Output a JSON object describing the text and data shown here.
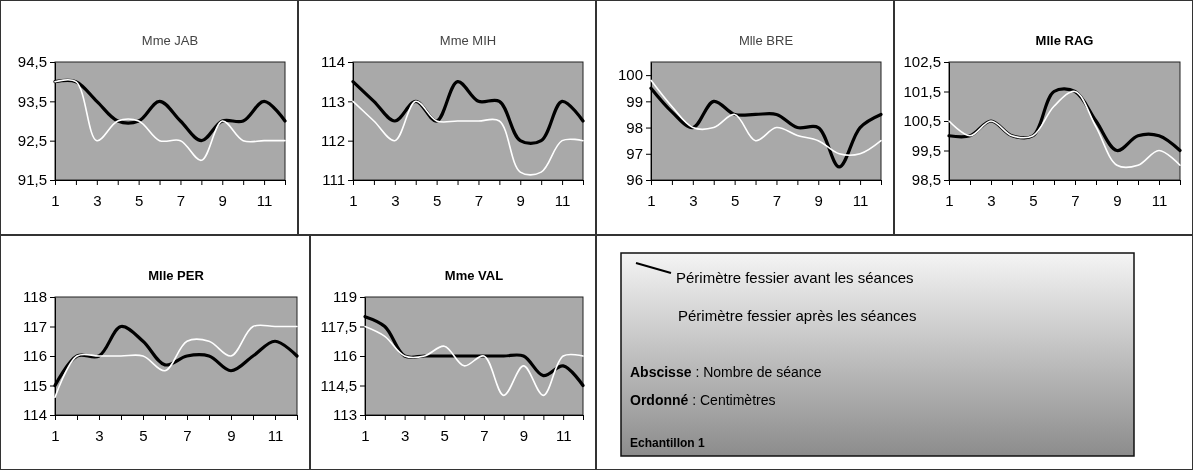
{
  "chart_data": [
    {
      "type": "line",
      "title": "Mme JAB",
      "x": [
        1,
        2,
        3,
        4,
        5,
        6,
        7,
        8,
        9,
        10,
        11,
        12
      ],
      "xlim": [
        1,
        12
      ],
      "xticks": [
        1,
        {
          "value": 2,
          "label": null
        },
        3,
        {
          "value": 4,
          "label": null
        },
        5,
        {
          "value": 6,
          "label": null
        },
        7,
        {
          "value": 8,
          "label": null
        },
        9,
        {
          "value": 10,
          "label": null
        },
        11,
        {
          "value": 12,
          "label": null
        }
      ],
      "ylim": [
        91.5,
        94.5
      ],
      "yticks": [
        {
          "value": 91.5,
          "label": "91,5"
        },
        {
          "value": 92.5,
          "label": "92,5"
        },
        {
          "value": 93.5,
          "label": "93,5"
        },
        {
          "value": 94.5,
          "label": "94,5"
        }
      ],
      "series": [
        {
          "color": "#000000",
          "values": [
            94,
            94,
            93.5,
            93,
            93,
            93.5,
            93,
            92.5,
            93,
            93,
            93.5,
            93
          ]
        },
        {
          "color": "#ffffff",
          "values": [
            94,
            94,
            92.5,
            93,
            93,
            92.5,
            92.5,
            92,
            93,
            92.5,
            92.5,
            92.5
          ]
        }
      ]
    },
    {
      "type": "line",
      "title": "Mme MIH",
      "x": [
        1,
        2,
        3,
        4,
        5,
        6,
        7,
        8,
        9,
        10,
        11,
        12
      ],
      "xlim": [
        1,
        12
      ],
      "xticks": [
        1,
        {
          "value": 2,
          "label": null
        },
        3,
        {
          "value": 4,
          "label": null
        },
        5,
        {
          "value": 6,
          "label": null
        },
        7,
        {
          "value": 8,
          "label": null
        },
        9,
        {
          "value": 10,
          "label": null
        },
        11,
        {
          "value": 12,
          "label": null
        }
      ],
      "ylim": [
        111,
        114
      ],
      "yticks": [
        111,
        112,
        113,
        114
      ],
      "series": [
        {
          "color": "#000000",
          "values": [
            113.5,
            113,
            112.5,
            113,
            112.5,
            113.5,
            113,
            113,
            112,
            112,
            113,
            112.5
          ]
        },
        {
          "color": "#ffffff",
          "values": [
            113,
            112.5,
            112,
            113,
            112.5,
            112.5,
            112.5,
            112.5,
            111.2,
            111.2,
            112,
            112
          ]
        }
      ]
    },
    {
      "type": "line",
      "title": "Mlle BRE",
      "x": [
        1,
        2,
        3,
        4,
        5,
        6,
        7,
        8,
        9,
        10,
        11,
        12
      ],
      "xlim": [
        1,
        12
      ],
      "xticks": [
        1,
        {
          "value": 2,
          "label": null
        },
        3,
        {
          "value": 4,
          "label": null
        },
        5,
        {
          "value": 6,
          "label": null
        },
        7,
        {
          "value": 8,
          "label": null
        },
        9,
        {
          "value": 10,
          "label": null
        },
        11,
        {
          "value": 12,
          "label": null
        }
      ],
      "ylim": [
        96,
        100.5
      ],
      "yticks": [
        96,
        97,
        98,
        99,
        100
      ],
      "series": [
        {
          "color": "#000000",
          "values": [
            99.5,
            98.6,
            98,
            99,
            98.5,
            98.5,
            98.5,
            98,
            98,
            96.5,
            98,
            98.5
          ]
        },
        {
          "color": "#ffffff",
          "values": [
            99.8,
            98.8,
            98,
            98,
            98.5,
            97.5,
            98,
            97.7,
            97.5,
            97,
            97,
            97.5
          ]
        }
      ]
    },
    {
      "type": "line",
      "title": "Mlle RAG",
      "x": [
        1,
        2,
        3,
        4,
        5,
        6,
        7,
        8,
        9,
        10,
        11,
        12
      ],
      "xlim": [
        1,
        12
      ],
      "xticks": [
        1,
        {
          "value": 2,
          "label": null
        },
        3,
        {
          "value": 4,
          "label": null
        },
        5,
        {
          "value": 6,
          "label": null
        },
        7,
        {
          "value": 8,
          "label": null
        },
        9,
        {
          "value": 10,
          "label": null
        },
        11,
        {
          "value": 12,
          "label": null
        }
      ],
      "ylim": [
        98.5,
        102.5
      ],
      "yticks": [
        {
          "value": 98.5,
          "label": "98,5"
        },
        {
          "value": 99.5,
          "label": "99,5"
        },
        {
          "value": 100.5,
          "label": "100,5"
        },
        {
          "value": 101.5,
          "label": "101,5"
        },
        {
          "value": 102.5,
          "label": "102,5"
        }
      ],
      "series": [
        {
          "color": "#000000",
          "values": [
            100,
            100,
            100.5,
            100,
            100,
            101.5,
            101.5,
            100.5,
            99.5,
            100,
            100,
            99.5
          ]
        },
        {
          "color": "#ffffff",
          "values": [
            100.5,
            100,
            100.5,
            100,
            100,
            101,
            101.5,
            100.3,
            99,
            99,
            99.5,
            99
          ]
        }
      ]
    },
    {
      "type": "line",
      "title": "Mlle PER",
      "x": [
        1,
        2,
        3,
        4,
        5,
        6,
        7,
        8,
        9,
        10,
        11,
        12
      ],
      "xlim": [
        1,
        12
      ],
      "xticks": [
        1,
        {
          "value": 2,
          "label": null
        },
        3,
        {
          "value": 4,
          "label": null
        },
        5,
        {
          "value": 6,
          "label": null
        },
        7,
        {
          "value": 8,
          "label": null
        },
        9,
        {
          "value": 10,
          "label": null
        },
        11,
        {
          "value": 12,
          "label": null
        }
      ],
      "ylim": [
        114,
        118
      ],
      "yticks": [
        114,
        115,
        116,
        117,
        118
      ],
      "series": [
        {
          "color": "#000000",
          "values": [
            115,
            116,
            116,
            117,
            116.5,
            115.7,
            116,
            116,
            115.5,
            116,
            116.5,
            116
          ]
        },
        {
          "color": "#ffffff",
          "values": [
            114.6,
            116,
            116,
            116,
            116,
            115.5,
            116.5,
            116.5,
            116,
            117,
            117,
            117
          ]
        }
      ]
    },
    {
      "type": "line",
      "title": "Mme VAL",
      "x": [
        1,
        2,
        3,
        4,
        5,
        6,
        7,
        8,
        9,
        10,
        11,
        12
      ],
      "xlim": [
        1,
        12
      ],
      "xticks": [
        1,
        {
          "value": 2,
          "label": null
        },
        3,
        {
          "value": 4,
          "label": null
        },
        5,
        {
          "value": 6,
          "label": null
        },
        7,
        {
          "value": 8,
          "label": null
        },
        9,
        {
          "value": 10,
          "label": null
        },
        11,
        {
          "value": 12,
          "label": null
        }
      ],
      "ylim": [
        113,
        119
      ],
      "yticks": [
        113,
        {
          "value": 114.5,
          "label": "114,5"
        },
        116,
        {
          "value": 117.5,
          "label": "117,5"
        },
        119
      ],
      "series": [
        {
          "color": "#000000",
          "values": [
            118,
            117.5,
            116,
            116,
            116,
            116,
            116,
            116,
            116,
            115,
            115.5,
            114.5
          ]
        },
        {
          "color": "#ffffff",
          "values": [
            117.5,
            117,
            116,
            116,
            116.5,
            115.5,
            116,
            114,
            115.5,
            114,
            116,
            116
          ]
        }
      ]
    },
    {
      "type": "other",
      "annotations": [
        "Périmètre fessier avant les séances",
        "Périmètre fessier après les séances",
        "Abscisse : Nombre de séance",
        "Ordonné : Centimètres",
        "Echantillon 1"
      ]
    }
  ]
}
